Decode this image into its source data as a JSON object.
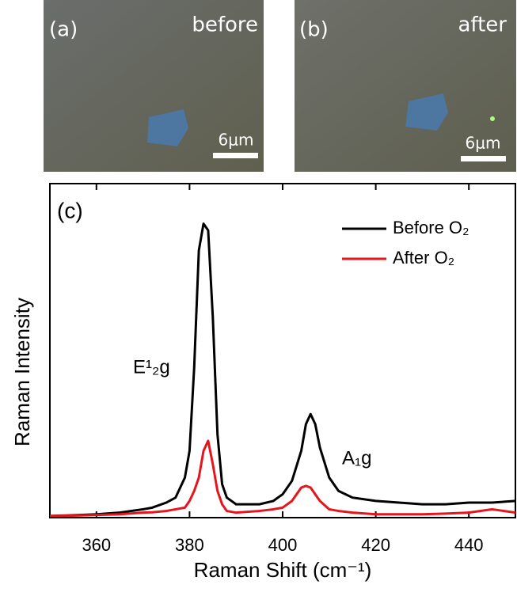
{
  "panels": [
    {
      "label": "(a)",
      "caption": "before",
      "scale": "6μm"
    },
    {
      "label": "(b)",
      "caption": "after",
      "scale": "6μm"
    }
  ],
  "chart_data": {
    "type": "line",
    "panel_label": "(c)",
    "x_label": "Raman Shift (cm⁻¹)",
    "y_label": "Raman Intensity",
    "xlim": [
      350,
      450
    ],
    "xticks": [
      360,
      380,
      400,
      420,
      440
    ],
    "ylim": [
      0,
      100
    ],
    "annotations": [
      "E¹₂g",
      "A₁g"
    ],
    "x": [
      350,
      355,
      360,
      365,
      370,
      372,
      375,
      377,
      379,
      380,
      381,
      382,
      383,
      384,
      385,
      386,
      387,
      388,
      390,
      395,
      398,
      400,
      402,
      404,
      405,
      406,
      407,
      408,
      410,
      412,
      415,
      420,
      425,
      430,
      435,
      440,
      445,
      450
    ],
    "series": [
      {
        "name": "Before O₂",
        "color": "#000000",
        "values": [
          0.5,
          0.7,
          1,
          1.5,
          2.5,
          3,
          4.5,
          6,
          12,
          20,
          45,
          80,
          88,
          86,
          60,
          25,
          10,
          6,
          4,
          4,
          5,
          7,
          11,
          20,
          28,
          31,
          28,
          21,
          12,
          8,
          6,
          5,
          4.5,
          4,
          4,
          4.5,
          4.5,
          5
        ]
      },
      {
        "name": "After O₂",
        "color": "#e8141c",
        "values": [
          0.5,
          0.6,
          0.8,
          1,
          1.5,
          1.6,
          2,
          2.5,
          3,
          5,
          8,
          12,
          20,
          23,
          16,
          8,
          4,
          2,
          1.5,
          2,
          2.5,
          3,
          5,
          9,
          9.5,
          9,
          7,
          5,
          2.5,
          2,
          1.5,
          1,
          1,
          1,
          1.2,
          1.5,
          2.5,
          1.5
        ]
      }
    ]
  }
}
